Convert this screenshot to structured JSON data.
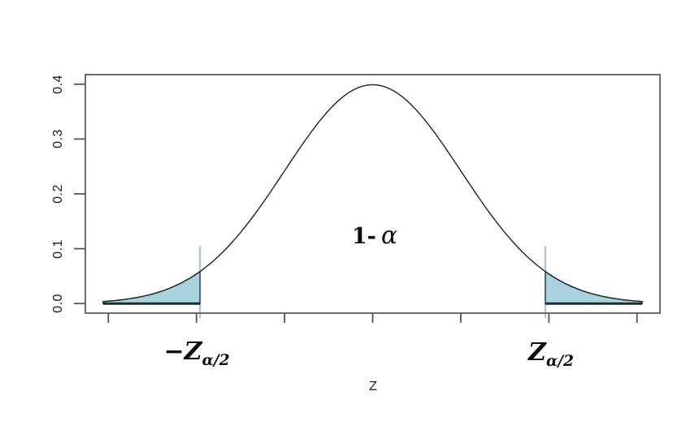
{
  "page": {
    "background": "#ffffff"
  },
  "chart_data": {
    "type": "area",
    "subtype": "standard-normal-two-tailed-critical-regions",
    "title": "",
    "xlabel": "Z",
    "ylabel": "",
    "distribution": {
      "name": "standard normal density",
      "mean": 0,
      "sd": 1,
      "peak_density": 0.4
    },
    "x_range": [
      -3,
      3
    ],
    "ylim": [
      0,
      0.4
    ],
    "curve_range": [
      -3.06,
      3.06
    ],
    "x_ticks": [
      -3,
      -2,
      -1,
      0,
      1,
      2,
      3
    ],
    "y_ticks": [
      0,
      0.1,
      0.2,
      0.3,
      0.4
    ],
    "y_tick_labels": [
      "0.0",
      "0.1",
      "0.2",
      "0.3",
      "0.4"
    ],
    "critical_values": [
      -1.96,
      1.96
    ],
    "shaded_regions": [
      [
        -3.06,
        -1.96
      ],
      [
        1.96,
        3.06
      ]
    ],
    "marker_line_top_density": 0.105,
    "grid": false,
    "legend": false,
    "colors": {
      "tail_fill": "#a9d2e1",
      "marker_line": "#a6c9ea",
      "curve": "#222222",
      "axis": "#555555",
      "shade_baseline": "#1f2a30"
    },
    "annotations": {
      "center": "1- α",
      "left_tail": "−Z α/2",
      "right_tail": "Z α/2"
    }
  },
  "labels": {
    "y_ticks": [
      "0.0",
      "0.1",
      "0.2",
      "0.3",
      "0.4"
    ],
    "x_axis": "Z",
    "center": {
      "lead": "1-",
      "alpha": "α"
    },
    "left_critical": {
      "sign": "−",
      "base": "Z",
      "sub": "α/2"
    },
    "right_critical": {
      "base": "Z",
      "sub": "α/2"
    }
  }
}
